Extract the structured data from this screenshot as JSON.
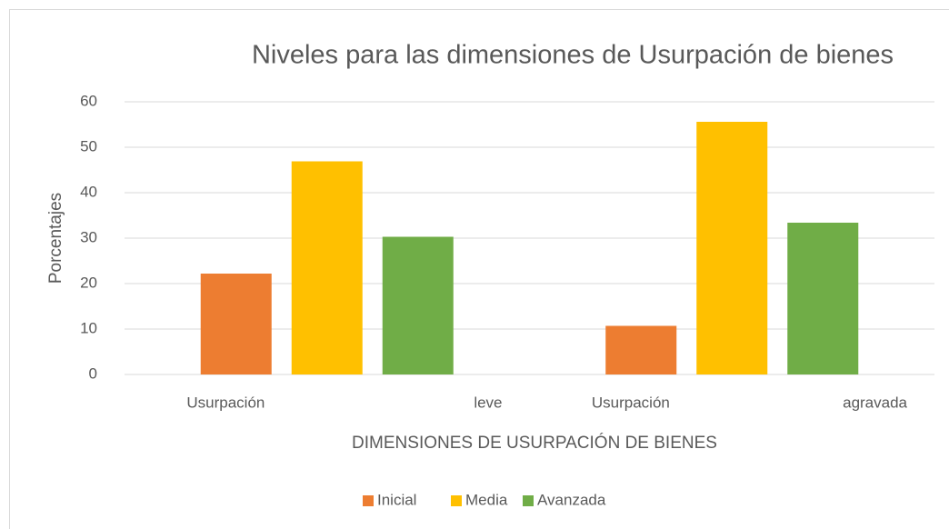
{
  "chart_data": {
    "type": "bar",
    "title": "Niveles para las dimensiones de Usurpación de bienes",
    "x_label": "DIMENSIONES DE USURPACIÓN DE BIENES",
    "y_label": "Porcentajes",
    "categories": [
      [
        "Usurpación",
        "leve"
      ],
      [
        "Usurpación",
        "agravada"
      ]
    ],
    "series": [
      {
        "name": "Inicial",
        "color": "#ed7d31",
        "values": [
          22.2,
          10.7
        ]
      },
      {
        "name": "Media",
        "color": "#ffc000",
        "values": [
          46.9,
          55.6
        ]
      },
      {
        "name": "Avanzada",
        "color": "#70ad47",
        "values": [
          30.3,
          33.4
        ]
      }
    ],
    "ylim": [
      0,
      60
    ],
    "yticks": [
      0,
      10,
      20,
      30,
      40,
      50,
      60
    ],
    "grid": true,
    "legend": "bottom"
  }
}
